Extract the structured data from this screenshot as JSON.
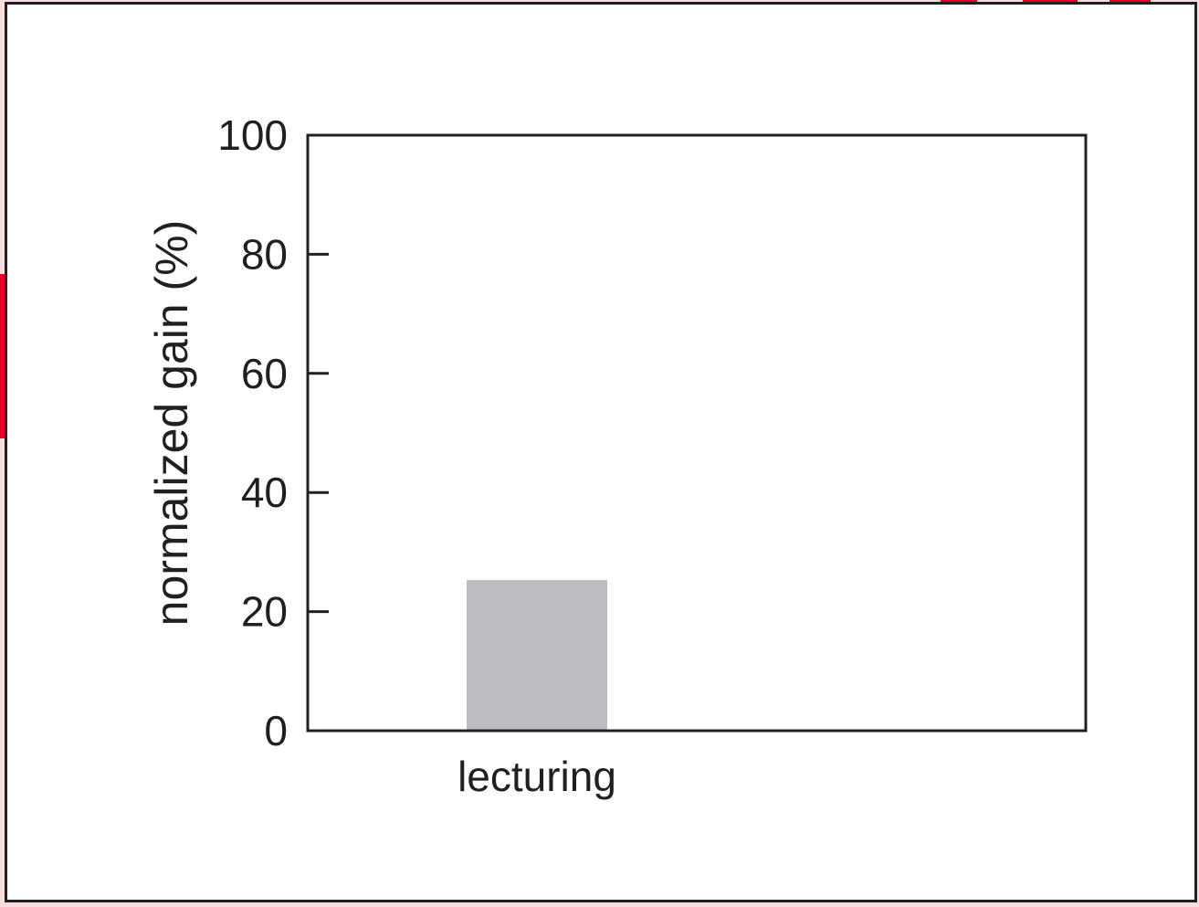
{
  "chart_data": {
    "type": "bar",
    "categories": [
      "lecturing"
    ],
    "values": [
      25.3
    ],
    "title": "",
    "xlabel": "",
    "ylabel": "normalized gain (%)",
    "ylim": [
      0,
      100
    ],
    "yticks": [
      0,
      20,
      40,
      60,
      80,
      100
    ],
    "grid": false,
    "legend": "none",
    "bar_color": "#bcbdc0",
    "axis_color": "#231f20"
  }
}
